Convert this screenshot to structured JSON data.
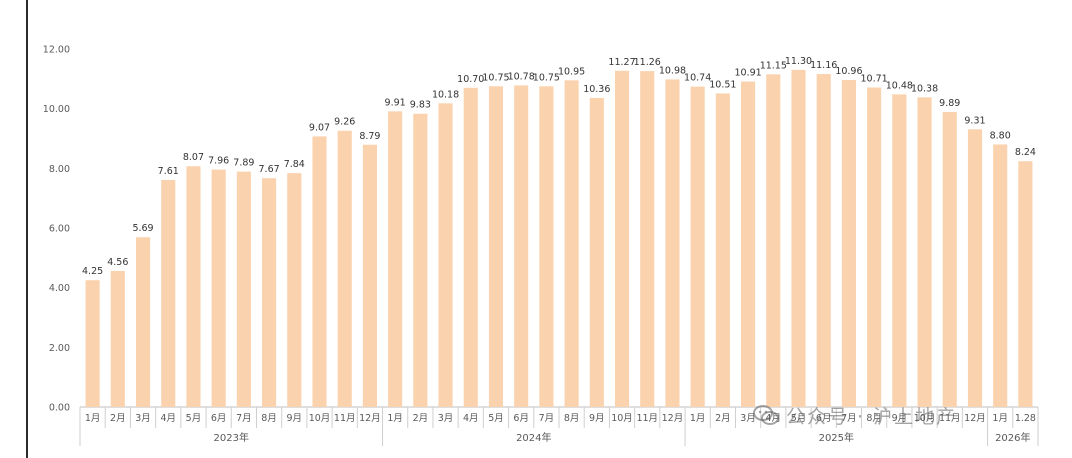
{
  "chart_data": {
    "type": "bar",
    "title": "",
    "xlabel": "",
    "ylabel": "",
    "ylim": [
      0,
      12
    ],
    "yticks": [
      "0.00",
      "2.00",
      "4.00",
      "6.00",
      "8.00",
      "10.00",
      "12.00"
    ],
    "bar_color": "#fbd2ae",
    "grid": false,
    "categories": [
      "1月",
      "2月",
      "3月",
      "4月",
      "5月",
      "6月",
      "7月",
      "8月",
      "9月",
      "10月",
      "11月",
      "12月",
      "1月",
      "2月",
      "3月",
      "4月",
      "5月",
      "6月",
      "7月",
      "8月",
      "9月",
      "10月",
      "11月",
      "12月",
      "1月",
      "2月",
      "3月",
      "4月",
      "5月",
      "6月",
      "7月",
      "8月",
      "9月",
      "10月",
      "11月",
      "12月",
      "1月"
    ],
    "values": [
      4.25,
      4.56,
      5.69,
      7.61,
      8.07,
      7.96,
      7.89,
      7.67,
      7.84,
      9.07,
      9.26,
      8.79,
      9.91,
      9.83,
      10.18,
      10.7,
      10.75,
      10.78,
      10.75,
      10.95,
      10.36,
      11.27,
      11.26,
      10.98,
      10.74,
      10.51,
      10.91,
      11.15,
      11.3,
      11.16,
      10.96,
      10.71,
      10.48,
      10.38,
      9.89,
      9.31,
      8.8
    ],
    "value_labels": [
      "4.25",
      "4.56",
      "5.69",
      "7.61",
      "8.07",
      "7.96",
      "7.89",
      "7.67",
      "7.84",
      "9.07",
      "9.26",
      "8.79",
      "9.91",
      "9.83",
      "10.18",
      "10.70",
      "10.75",
      "10.78",
      "10.75",
      "10.95",
      "10.36",
      "11.27",
      "11.26",
      "10.98",
      "10.74",
      "10.51",
      "10.91",
      "11.15",
      "11.30",
      "11.16",
      "10.96",
      "10.71",
      "10.48",
      "10.38",
      "9.89",
      "9.31",
      "8.80"
    ],
    "extra_bar": {
      "category": "1.28",
      "value": 8.24,
      "label": "8.24"
    },
    "year_groups": [
      {
        "label": "2023年",
        "count": 12
      },
      {
        "label": "2024年",
        "count": 12
      },
      {
        "label": "2025年",
        "count": 12
      },
      {
        "label": "2026年",
        "count": 2
      }
    ]
  },
  "watermark": {
    "icon": "wechat-icon",
    "text": "公众号 · 沪上地产"
  }
}
